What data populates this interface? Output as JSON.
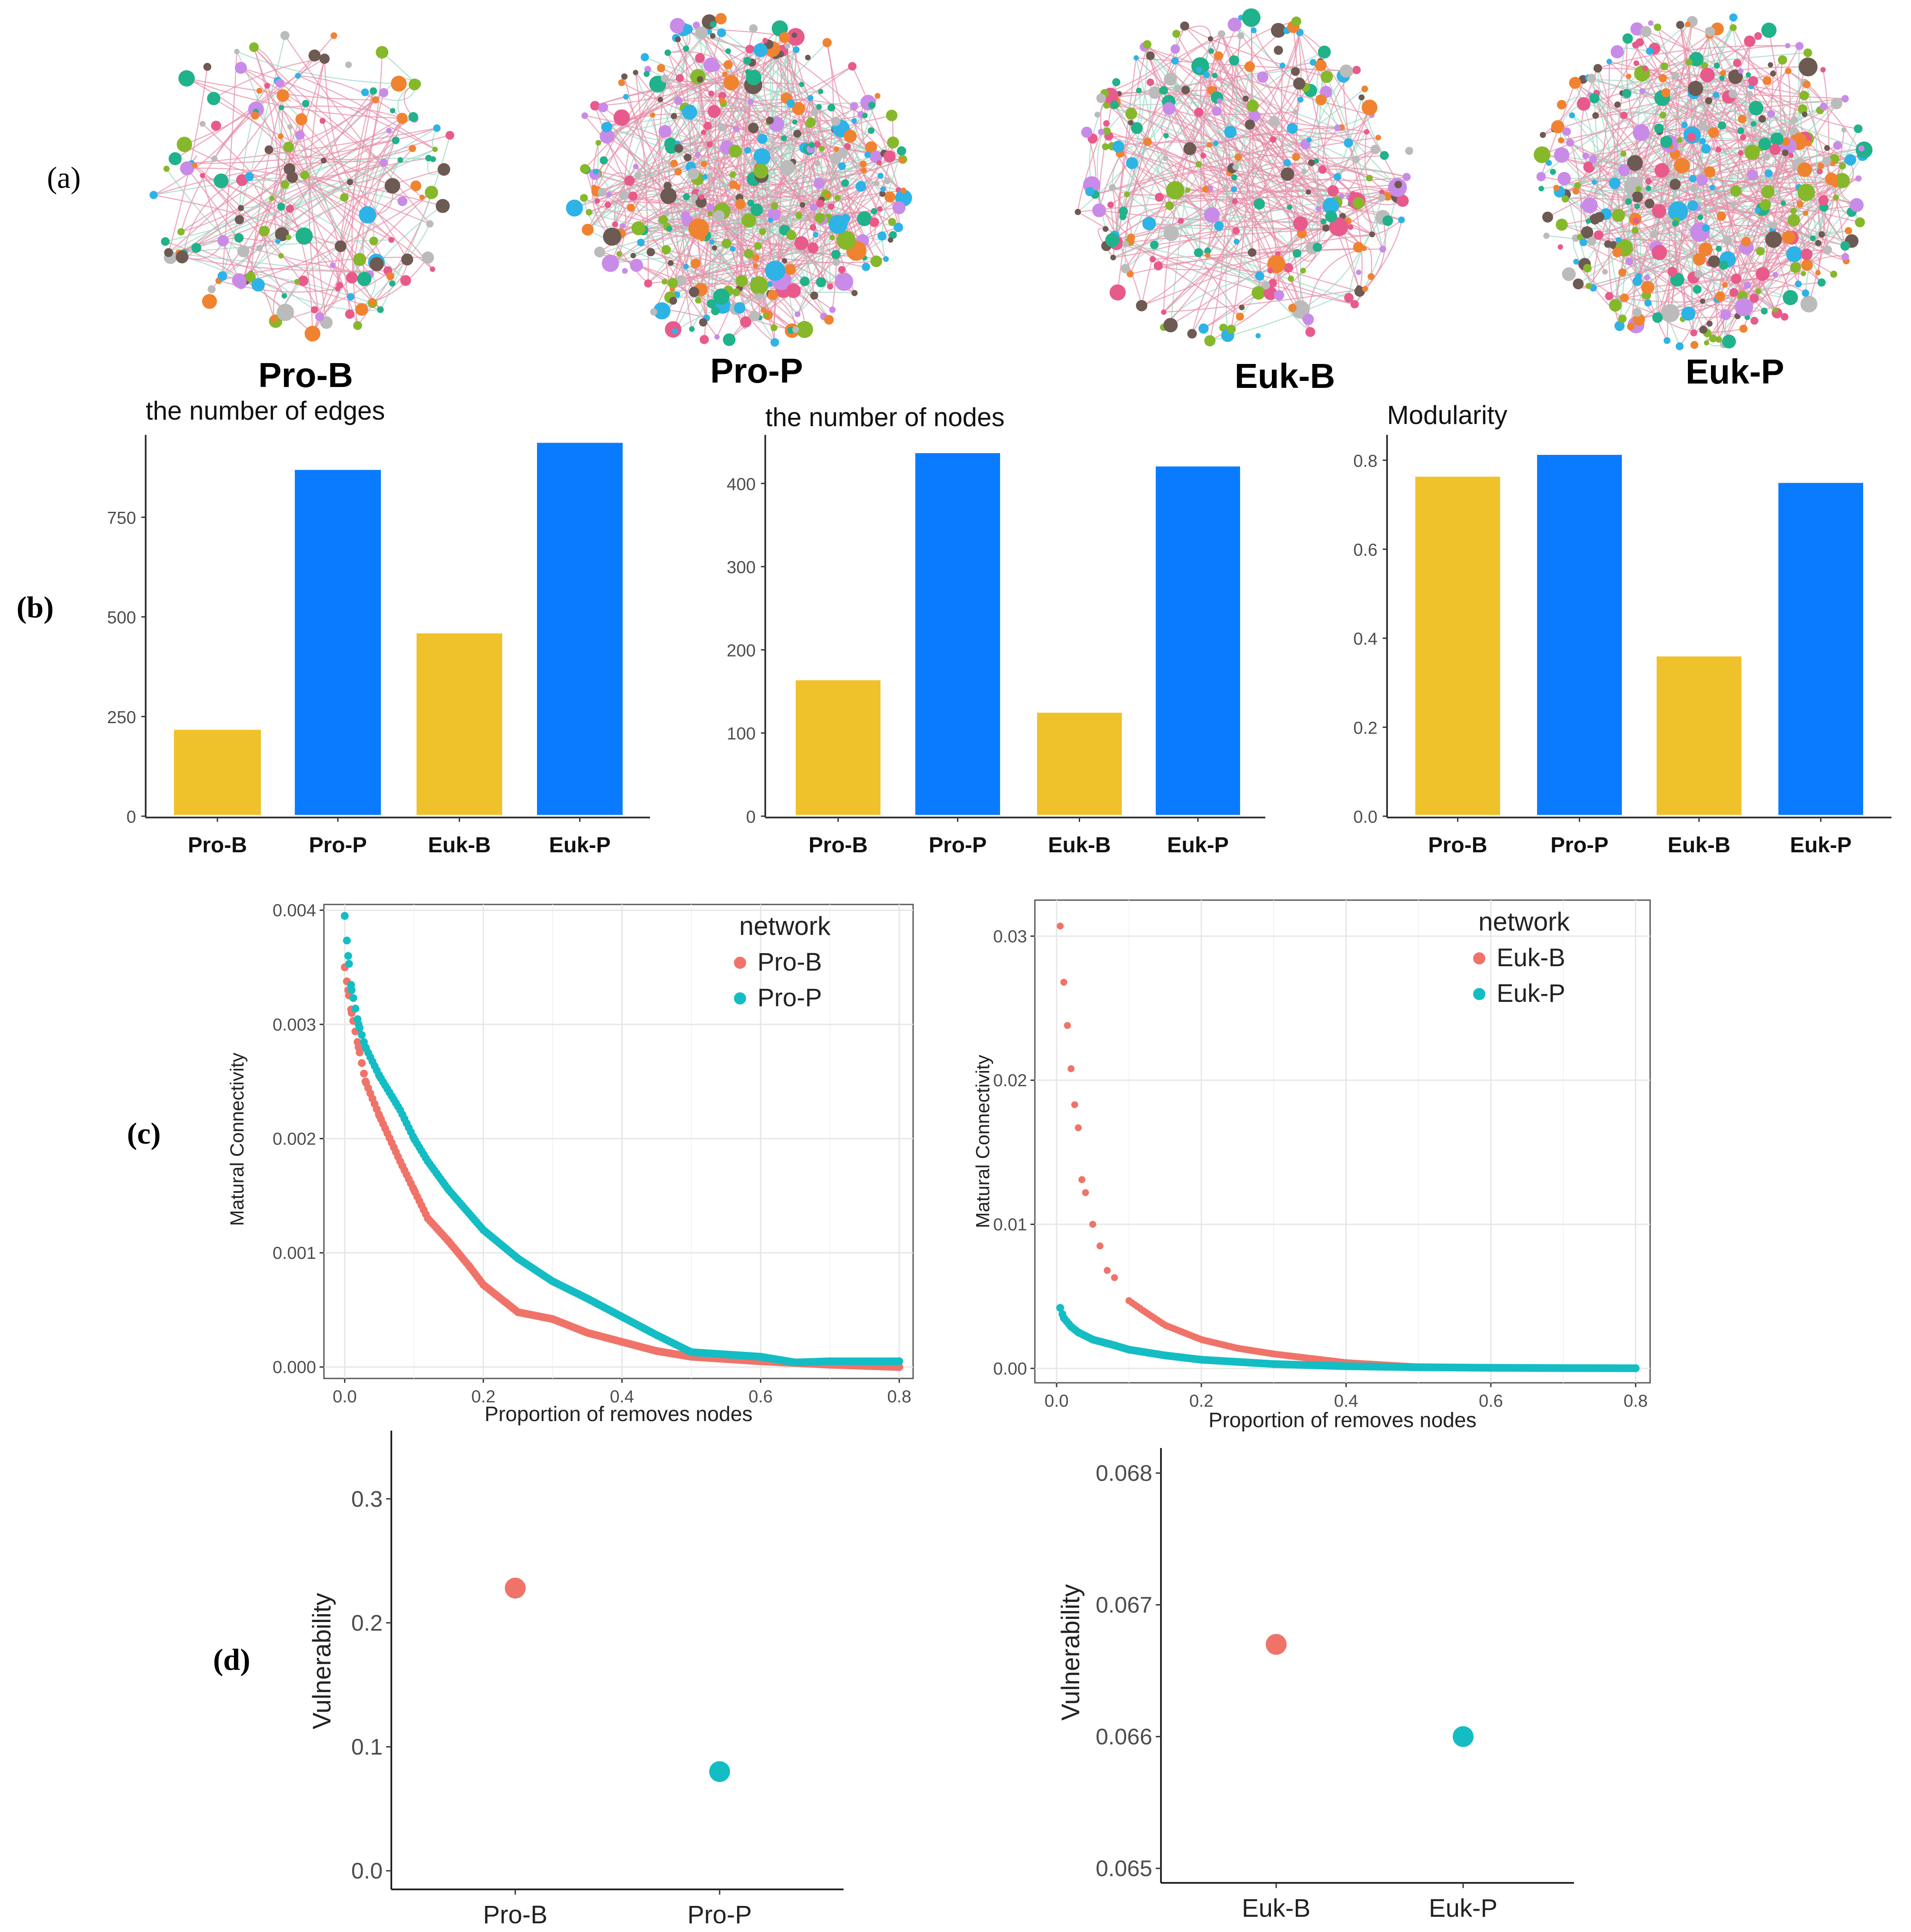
{
  "panel_labels": {
    "a": "(a)",
    "b": "(b)",
    "c": "(c)",
    "d": "(d)"
  },
  "colors": {
    "yellow": "#EFC22B",
    "blue": "#0A7BFF",
    "red": "#F07369",
    "teal": "#14BDC4",
    "axis": "#333333",
    "grid": "#E6E6E6"
  },
  "networks": [
    {
      "label": "Pro-B",
      "density": 150
    },
    {
      "label": "Pro-P",
      "density": 380
    },
    {
      "label": "Euk-B",
      "density": 260
    },
    {
      "label": "Euk-P",
      "density": 380
    }
  ],
  "chart_data": [
    {
      "id": "edges",
      "type": "bar",
      "title": "the number of edges",
      "categories": [
        "Pro-B",
        "Pro-P",
        "Euk-B",
        "Euk-P"
      ],
      "values": [
        220,
        872,
        462,
        940
      ],
      "bar_colors": [
        "yellow",
        "blue",
        "yellow",
        "blue"
      ],
      "ylim": [
        0,
        960
      ],
      "yticks": [
        0,
        250,
        500,
        750
      ],
      "ytick_labels": [
        "0",
        "250",
        "500",
        "750"
      ]
    },
    {
      "id": "nodes",
      "type": "bar",
      "title": "the number of nodes",
      "categories": [
        "Pro-B",
        "Pro-P",
        "Euk-B",
        "Euk-P"
      ],
      "values": [
        165,
        438,
        126,
        422
      ],
      "bar_colors": [
        "yellow",
        "blue",
        "yellow",
        "blue"
      ],
      "ylim": [
        0,
        460
      ],
      "yticks": [
        0,
        100,
        200,
        300,
        400
      ],
      "ytick_labels": [
        "0",
        "100",
        "200",
        "300",
        "400"
      ]
    },
    {
      "id": "modularity",
      "type": "bar",
      "title": "Modularity",
      "categories": [
        "Pro-B",
        "Pro-P",
        "Euk-B",
        "Euk-P"
      ],
      "values": [
        0.766,
        0.815,
        0.362,
        0.752
      ],
      "bar_colors": [
        "yellow",
        "blue",
        "yellow",
        "blue"
      ],
      "ylim": [
        0,
        0.86
      ],
      "yticks": [
        0,
        0.2,
        0.4,
        0.6,
        0.8
      ],
      "ytick_labels": [
        "0.0",
        "0.2",
        "0.4",
        "0.6",
        "0.8"
      ]
    },
    {
      "id": "robust_pro",
      "type": "scatter",
      "ylabel": "Matural Connectivity",
      "xlabel": "Proportion of removes nodes",
      "legend_title": "network",
      "legend_position": "top-right",
      "xlim": [
        -0.03,
        0.82
      ],
      "ylim": [
        -0.0001,
        0.00405
      ],
      "xticks": [
        0,
        0.2,
        0.4,
        0.6,
        0.8
      ],
      "xtick_labels": [
        "0.0",
        "0.2",
        "0.4",
        "0.6",
        "0.8"
      ],
      "yticks": [
        0,
        0.001,
        0.002,
        0.003,
        0.004
      ],
      "ytick_labels": [
        "0.000",
        "0.001",
        "0.002",
        "0.003",
        "0.004"
      ],
      "series": [
        {
          "name": "Pro-B",
          "color": "red",
          "x": [
            0,
            0.005,
            0.01,
            0.02,
            0.03,
            0.05,
            0.08,
            0.1,
            0.12,
            0.15,
            0.18,
            0.2,
            0.25,
            0.3,
            0.35,
            0.4,
            0.45,
            0.5,
            0.6,
            0.7,
            0.8
          ],
          "y": [
            0.0035,
            0.0033,
            0.0031,
            0.0028,
            0.0025,
            0.0022,
            0.0018,
            0.00155,
            0.0013,
            0.0011,
            0.00088,
            0.00072,
            0.00048,
            0.00042,
            0.0003,
            0.00022,
            0.00014,
            9e-05,
            5e-05,
            2e-05,
            0
          ]
        },
        {
          "name": "Pro-P",
          "color": "teal",
          "x": [
            0,
            0.005,
            0.01,
            0.02,
            0.03,
            0.05,
            0.08,
            0.1,
            0.12,
            0.15,
            0.2,
            0.25,
            0.3,
            0.35,
            0.4,
            0.45,
            0.5,
            0.6,
            0.65,
            0.7,
            0.8
          ],
          "y": [
            0.00395,
            0.0036,
            0.0033,
            0.003,
            0.0028,
            0.00255,
            0.00225,
            0.002,
            0.0018,
            0.00155,
            0.0012,
            0.00095,
            0.00075,
            0.0006,
            0.00044,
            0.00028,
            0.00013,
            9e-05,
            4e-05,
            5e-05,
            5e-05
          ]
        }
      ]
    },
    {
      "id": "robust_euk",
      "type": "scatter",
      "ylabel": "Matural Connectivity",
      "xlabel": "Proportion of removes nodes",
      "legend_title": "network",
      "legend_position": "top-right",
      "xlim": [
        -0.03,
        0.82
      ],
      "ylim": [
        -0.001,
        0.0325
      ],
      "xticks": [
        0,
        0.2,
        0.4,
        0.6,
        0.8
      ],
      "xtick_labels": [
        "0.0",
        "0.2",
        "0.4",
        "0.6",
        "0.8"
      ],
      "yticks": [
        0,
        0.01,
        0.02,
        0.03
      ],
      "ytick_labels": [
        "0.00",
        "0.01",
        "0.02",
        "0.03"
      ],
      "series": [
        {
          "name": "Euk-B",
          "color": "red",
          "x": [
            0.005,
            0.01,
            0.015,
            0.02,
            0.025,
            0.03,
            0.035,
            0.04,
            0.05,
            0.06,
            0.07,
            0.08,
            0.1,
            0.12,
            0.15,
            0.2,
            0.25,
            0.3,
            0.35,
            0.4,
            0.45,
            0.5,
            0.8
          ],
          "y": [
            0.0307,
            0.0268,
            0.0238,
            0.0208,
            0.0183,
            0.0167,
            0.0131,
            0.0122,
            0.01,
            0.0085,
            0.0068,
            0.0063,
            0.0047,
            0.004,
            0.003,
            0.002,
            0.0014,
            0.001,
            0.0007,
            0.0004,
            0.00025,
            0.0001,
            0
          ]
        },
        {
          "name": "Euk-P",
          "color": "teal",
          "x": [
            0.005,
            0.01,
            0.02,
            0.03,
            0.05,
            0.08,
            0.1,
            0.15,
            0.2,
            0.3,
            0.4,
            0.5,
            0.6,
            0.7,
            0.8
          ],
          "y": [
            0.0042,
            0.0035,
            0.0029,
            0.0025,
            0.002,
            0.0016,
            0.0013,
            0.0009,
            0.0006,
            0.0003,
            0.00015,
            8e-05,
            4e-05,
            2e-05,
            1e-05
          ]
        }
      ]
    },
    {
      "id": "vuln_pro",
      "type": "scatter",
      "ylabel": "Vulnerability",
      "categories": [
        "Pro-B",
        "Pro-P"
      ],
      "values": [
        0.228,
        0.08
      ],
      "point_colors": [
        "red",
        "teal"
      ],
      "ylim": [
        -0.015,
        0.355
      ],
      "yticks": [
        0,
        0.1,
        0.2,
        0.3
      ],
      "ytick_labels": [
        "0.0",
        "0.1",
        "0.2",
        "0.3"
      ]
    },
    {
      "id": "vuln_euk",
      "type": "scatter",
      "ylabel": "Vulnerability",
      "categories": [
        "Euk-B",
        "Euk-P"
      ],
      "values": [
        0.0667,
        0.066
      ],
      "point_colors": [
        "red",
        "teal"
      ],
      "ylim": [
        0.06489,
        0.06819
      ],
      "yticks": [
        0.065,
        0.066,
        0.067,
        0.068
      ],
      "ytick_labels": [
        "0.065",
        "0.066",
        "0.067",
        "0.068"
      ]
    }
  ]
}
